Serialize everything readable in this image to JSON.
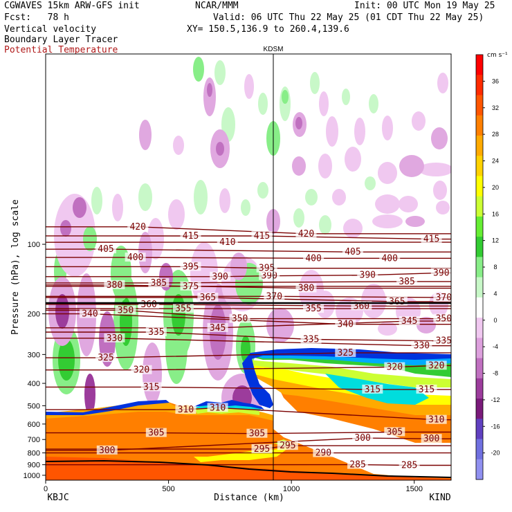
{
  "header": {
    "model": "CGWAVES 15km ARW-GFS init",
    "fcst": "Fcst:   78 h",
    "field1": "Vertical velocity",
    "field2": "Boundary Layer Tracer",
    "field3": "Potential Temperature",
    "org": "NCAR/MMM",
    "init": "Init: 00 UTC Mon 19 May 25",
    "valid": "Valid: 06 UTC Thu 22 May 25 (01 CDT Thu 22 May 25)",
    "xy": "XY= 150.5,136.9 to 260.4,139.6"
  },
  "chart_data": {
    "type": "heatmap",
    "title": "Vertical velocity / Boundary Layer Tracer / Potential Temperature cross-section",
    "xlabel": "Distance (km)",
    "ylabel": "Pressure (hPa), log scale",
    "xlim": [
      0,
      1650
    ],
    "ylim_hpa": [
      1050,
      15
    ],
    "x_ticks": [
      0,
      500,
      1000,
      1500
    ],
    "y_ticks": [
      100,
      200,
      300,
      400,
      500,
      600,
      700,
      800,
      900,
      1000
    ],
    "left_station": "KBJC",
    "right_station": "KIND",
    "marker_station": "KDSM",
    "marker_x_km": 935,
    "colorbar_unit": "cm s⁻¹",
    "colorbar_labels": [
      "36",
      "32",
      "28",
      "24",
      "20",
      "16",
      "12",
      "8",
      "4",
      "0",
      "-4",
      "-8",
      "-12",
      "-16",
      "-20"
    ],
    "colorbar_colors": [
      "#ff0000",
      "#ff2a00",
      "#ff5500",
      "#ff7f00",
      "#ffaa00",
      "#ffd200",
      "#ffff00",
      "#ccff33",
      "#66ee33",
      "#33cc33",
      "#88ee88",
      "#c8f8c8",
      "#ffffff",
      "#f0c8f0",
      "#dda0dd",
      "#c070c0",
      "#9c3c9c",
      "#7a1a7a",
      "#6040c0",
      "#7070e0",
      "#9090f0"
    ],
    "theta_contours": [
      {
        "value": 285,
        "labels": [
          [
            1270,
            900
          ],
          [
            1480,
            905
          ]
        ]
      },
      {
        "value": 290,
        "labels": [
          [
            1130,
            800
          ]
        ]
      },
      {
        "value": 295,
        "labels": [
          [
            880,
            770
          ],
          [
            985,
            745
          ]
        ]
      },
      {
        "value": 300,
        "labels": [
          [
            250,
            780
          ],
          [
            1290,
            690
          ],
          [
            1570,
            695
          ]
        ]
      },
      {
        "value": 305,
        "labels": [
          [
            450,
            655
          ],
          [
            860,
            660
          ],
          [
            1420,
            650
          ]
        ]
      },
      {
        "value": 310,
        "labels": [
          [
            570,
            520
          ],
          [
            700,
            510
          ],
          [
            1590,
            575
          ]
        ]
      },
      {
        "value": 315,
        "labels": [
          [
            430,
            415
          ],
          [
            1330,
            425
          ],
          [
            1550,
            425
          ]
        ]
      },
      {
        "value": 320,
        "labels": [
          [
            390,
            350
          ],
          [
            1420,
            340
          ],
          [
            1590,
            335
          ]
        ]
      },
      {
        "value": 325,
        "labels": [
          [
            245,
            310
          ],
          [
            1220,
            295
          ]
        ]
      },
      {
        "value": 330,
        "labels": [
          [
            280,
            255
          ],
          [
            1530,
            275
          ]
        ]
      },
      {
        "value": 335,
        "labels": [
          [
            450,
            240
          ],
          [
            1080,
            258
          ],
          [
            1620,
            262
          ]
        ]
      },
      {
        "value": 340,
        "labels": [
          [
            180,
            200
          ],
          [
            1220,
            222
          ]
        ]
      },
      {
        "value": 345,
        "labels": [
          [
            700,
            230
          ],
          [
            1480,
            215
          ]
        ]
      },
      {
        "value": 350,
        "labels": [
          [
            325,
            193
          ],
          [
            790,
            210
          ],
          [
            1620,
            210
          ]
        ]
      },
      {
        "value": 355,
        "labels": [
          [
            560,
            190
          ],
          [
            1090,
            190
          ]
        ]
      },
      {
        "value": 360,
        "labels": [
          [
            420,
            182
          ],
          [
            1285,
            185
          ]
        ]
      },
      {
        "value": 365,
        "labels": [
          [
            660,
            170
          ],
          [
            1430,
            177
          ]
        ]
      },
      {
        "value": 370,
        "labels": [
          [
            930,
            168
          ],
          [
            1620,
            170
          ]
        ]
      },
      {
        "value": 375,
        "labels": [
          [
            590,
            152
          ]
        ]
      },
      {
        "value": 380,
        "labels": [
          [
            280,
            150
          ],
          [
            1060,
            155
          ]
        ]
      },
      {
        "value": 385,
        "labels": [
          [
            460,
            147
          ],
          [
            1470,
            145
          ]
        ]
      },
      {
        "value": 390,
        "labels": [
          [
            710,
            138
          ],
          [
            910,
            137
          ],
          [
            1310,
            136
          ],
          [
            1610,
            133
          ]
        ]
      },
      {
        "value": 395,
        "labels": [
          [
            590,
            125
          ],
          [
            900,
            127
          ]
        ]
      },
      {
        "value": 400,
        "labels": [
          [
            365,
            114
          ],
          [
            1090,
            115
          ],
          [
            1400,
            115
          ]
        ]
      },
      {
        "value": 405,
        "labels": [
          [
            245,
            105
          ],
          [
            1250,
            108
          ]
        ]
      },
      {
        "value": 410,
        "labels": [
          [
            740,
            98
          ]
        ]
      },
      {
        "value": 415,
        "labels": [
          [
            590,
            92
          ],
          [
            880,
            92
          ],
          [
            1570,
            95
          ]
        ]
      },
      {
        "value": 420,
        "labels": [
          [
            375,
            84
          ],
          [
            1060,
            90
          ]
        ]
      }
    ]
  }
}
